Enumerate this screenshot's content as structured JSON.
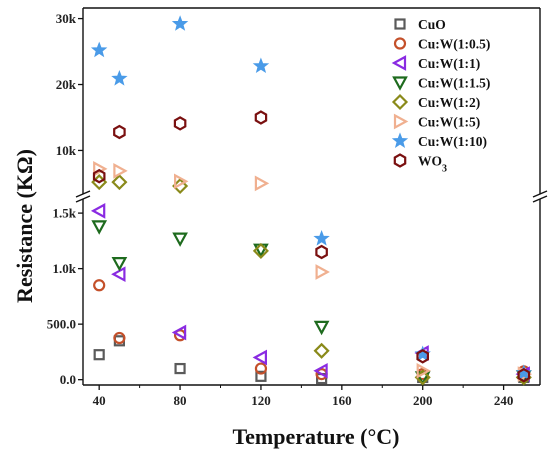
{
  "chart_data": {
    "type": "scatter",
    "xlabel": "Temperature (°C)",
    "ylabel": "Resistance (KΩ)",
    "xlim": [
      32,
      258
    ],
    "x_ticks": [
      40,
      80,
      120,
      160,
      200,
      240
    ],
    "x_tick_labels": [
      "40",
      "80",
      "120",
      "160",
      "200",
      "240"
    ],
    "y_scale": "broken",
    "y_lower_range": [
      -30,
      1600
    ],
    "y_upper_range": [
      4000,
      31000
    ],
    "y_lower_ticks": [
      0,
      500,
      1000,
      1500
    ],
    "y_lower_tick_labels": [
      "0.0",
      "500.0",
      "1.0k",
      "1.5k"
    ],
    "y_upper_ticks": [
      10000,
      20000,
      30000
    ],
    "y_upper_tick_labels": [
      "10k",
      "20k",
      "30k"
    ],
    "legend_position": "top-right",
    "series": [
      {
        "name": "CuO",
        "label_main": "CuO",
        "label_sub": "",
        "marker": "square",
        "color": "#5a5a5a",
        "x": [
          40,
          50,
          80,
          120,
          150,
          200,
          250
        ],
        "y": [
          225,
          350,
          100,
          30,
          10,
          20,
          20
        ]
      },
      {
        "name": "Cu:W(1:0.5)",
        "label_main": "Cu:W(1:0.5)",
        "label_sub": "",
        "marker": "circle",
        "color": "#c4502a",
        "x": [
          40,
          50,
          80,
          120,
          150,
          200,
          250
        ],
        "y": [
          850,
          375,
          400,
          100,
          50,
          50,
          75
        ]
      },
      {
        "name": "Cu:W(1:1)",
        "label_main": "Cu:W(1:1)",
        "label_sub": "",
        "marker": "triangle-left",
        "color": "#8a2be2",
        "x": [
          40,
          50,
          80,
          120,
          150,
          200,
          250
        ],
        "y": [
          1520,
          950,
          425,
          200,
          80,
          240,
          50
        ]
      },
      {
        "name": "Cu:W(1:1.5)",
        "label_main": "Cu:W(1:1.5)",
        "label_sub": "",
        "marker": "triangle-down",
        "color": "#1e6b1e",
        "x": [
          40,
          50,
          80,
          120,
          150,
          200,
          250
        ],
        "y": [
          1380,
          1050,
          1270,
          1170,
          475,
          20,
          30
        ]
      },
      {
        "name": "Cu:W(1:2)",
        "label_main": "Cu:W(1:2)",
        "label_sub": "",
        "marker": "diamond",
        "color": "#8a8a1a",
        "x": [
          40,
          50,
          80,
          120,
          150,
          200,
          250
        ],
        "y": [
          5200,
          5200,
          4600,
          1160,
          260,
          20,
          20
        ]
      },
      {
        "name": "Cu:W(1:5)",
        "label_main": "Cu:W(1:5)",
        "label_sub": "",
        "marker": "triangle-right",
        "color": "#f0b090",
        "x": [
          40,
          50,
          80,
          120,
          150,
          200,
          250
        ],
        "y": [
          7200,
          6900,
          5300,
          5000,
          970,
          80,
          50
        ]
      },
      {
        "name": "Cu:W(1:10)",
        "label_main": "Cu:W(1:10)",
        "label_sub": "",
        "marker": "star",
        "color": "#4a9be8",
        "x": [
          40,
          50,
          80,
          120,
          150,
          200,
          250
        ],
        "y": [
          25200,
          20900,
          29200,
          22800,
          1270,
          230,
          60
        ]
      },
      {
        "name": "WO3",
        "label_main": "WO",
        "label_sub": "3",
        "marker": "hexagon",
        "color": "#7a1010",
        "x": [
          40,
          50,
          80,
          120,
          150,
          200,
          250
        ],
        "y": [
          6100,
          12800,
          14100,
          15000,
          1150,
          210,
          40
        ]
      }
    ]
  }
}
